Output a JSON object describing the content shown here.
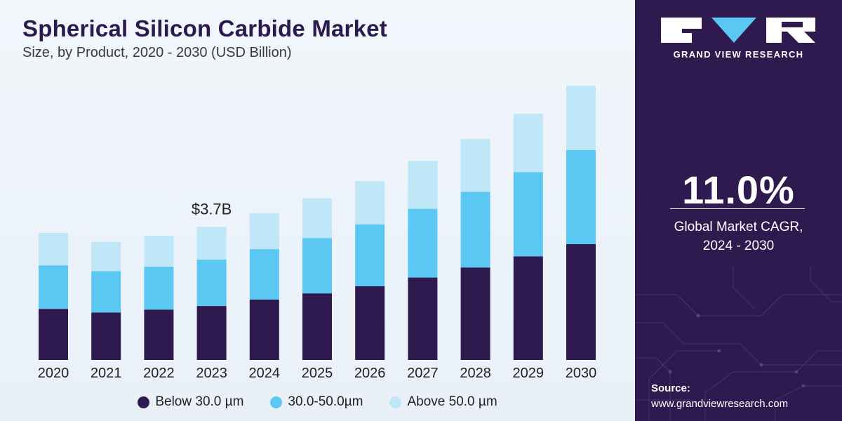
{
  "header": {
    "title": "Spherical Silicon Carbide Market",
    "subtitle": "Size, by Product, 2020 - 2030 (USD Billion)"
  },
  "chart_data": {
    "type": "bar",
    "stacked": true,
    "categories": [
      "2020",
      "2021",
      "2022",
      "2023",
      "2024",
      "2025",
      "2026",
      "2027",
      "2028",
      "2029",
      "2030"
    ],
    "series": [
      {
        "name": "Below 30.0 µm",
        "color": "#2e1a4e",
        "values": [
          1.42,
          1.32,
          1.4,
          1.5,
          1.68,
          1.85,
          2.05,
          2.29,
          2.57,
          2.88,
          3.22
        ]
      },
      {
        "name": "30.0-50.0µm",
        "color": "#5ac8f2",
        "values": [
          1.21,
          1.15,
          1.19,
          1.29,
          1.4,
          1.54,
          1.72,
          1.91,
          2.1,
          2.34,
          2.61
        ]
      },
      {
        "name": "Above 50.0 µm",
        "color": "#bfe7f8",
        "values": [
          0.9,
          0.81,
          0.86,
          0.91,
          1.0,
          1.1,
          1.2,
          1.33,
          1.47,
          1.62,
          1.79
        ]
      }
    ],
    "annotations": [
      {
        "category": "2023",
        "text": "$3.7B"
      }
    ],
    "ylim": [
      0,
      7.8
    ],
    "grid": false,
    "legend": "bottom-center",
    "xlabel": "",
    "ylabel": ""
  },
  "sidebar": {
    "brand": "GRAND VIEW RESEARCH",
    "cagr_value": "11.0%",
    "cagr_label": "Global Market CAGR,\n2024 - 2030",
    "source_label": "Source:",
    "source_url": "www.grandviewresearch.com",
    "logo_icon": "gvr-logo-icon",
    "texture_icon": "circuit-pattern-icon"
  }
}
